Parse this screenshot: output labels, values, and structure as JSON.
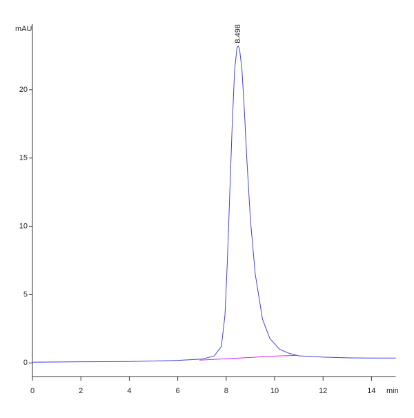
{
  "chart_data": {
    "type": "line",
    "y_label": "mAU",
    "x_label": "min",
    "xlim": [
      0,
      15
    ],
    "xticks": [
      0,
      2,
      4,
      6,
      8,
      10,
      12,
      14
    ],
    "ylim": [
      -1,
      24.8
    ],
    "yticks": [
      0,
      5,
      10,
      15,
      20
    ],
    "series": [
      {
        "color": "#4040e0",
        "x": [
          0,
          2,
          4,
          6,
          7,
          7.5,
          7.8,
          7.95,
          8.05,
          8.15,
          8.25,
          8.35,
          8.45,
          8.5,
          8.55,
          8.65,
          8.75,
          8.85,
          9.0,
          9.2,
          9.5,
          9.8,
          10.2,
          10.6,
          11,
          12,
          13,
          14,
          15
        ],
        "values": [
          0.05,
          0.08,
          0.1,
          0.18,
          0.28,
          0.5,
          1.2,
          3.5,
          7.5,
          12.5,
          17.5,
          21.5,
          23.1,
          23.2,
          23.0,
          21.5,
          18.5,
          15,
          10.5,
          6.5,
          3.2,
          1.8,
          1.0,
          0.7,
          0.52,
          0.42,
          0.37,
          0.35,
          0.35
        ]
      },
      {
        "color": "#e020e0",
        "x": [
          6.9,
          8,
          9,
          10,
          10.9
        ],
        "values": [
          0.2,
          0.3,
          0.4,
          0.5,
          0.55
        ]
      }
    ],
    "annotations": [
      {
        "label": "8.498",
        "x": 8.498,
        "y": 23.2
      }
    ]
  }
}
